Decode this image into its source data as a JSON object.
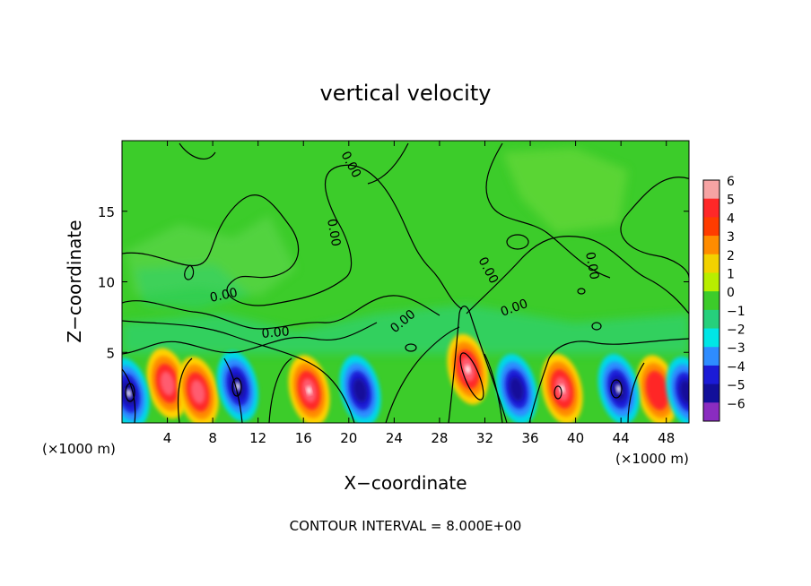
{
  "chart_data": {
    "type": "heatmap",
    "title": "vertical velocity",
    "xlabel": "X−coordinate",
    "ylabel": "Z−coordinate",
    "x_unit_left": "(×1000 m)",
    "x_unit_right": "(×1000 m)",
    "xlim": [
      0,
      50
    ],
    "ylim": [
      0,
      20
    ],
    "x_ticks": [
      4,
      8,
      12,
      16,
      20,
      24,
      28,
      32,
      36,
      40,
      44,
      48
    ],
    "x_tick_labels": [
      "4",
      "8",
      "12",
      "16",
      "20",
      "24",
      "28",
      "32",
      "36",
      "40",
      "44",
      "48"
    ],
    "y_ticks": [
      5,
      10,
      15
    ],
    "y_tick_labels": [
      "5",
      "10",
      "15"
    ],
    "contour_label": "0.00",
    "footer": "CONTOUR INTERVAL = 8.000E+00",
    "colorbar": {
      "levels": [
        6,
        5,
        4,
        3,
        2,
        1,
        0,
        -1,
        -2,
        -3,
        -4,
        -5,
        -6
      ],
      "labels": [
        "6",
        "5",
        "4",
        "3",
        "2",
        "1",
        "0",
        "−1",
        "−2",
        "−3",
        "−4",
        "−5",
        "−6"
      ],
      "colors": [
        "#f6a3a3",
        "#ff2828",
        "#ff3c00",
        "#ff8c00",
        "#f2d200",
        "#b8ee00",
        "#3ccc2a",
        "#26d07c",
        "#00e6e6",
        "#2e8cff",
        "#1b1bd6",
        "#120f9a",
        "#8a2cc0"
      ]
    },
    "updraft_cells": [
      {
        "x": 4.0,
        "z": 2.8,
        "peak": 4.5
      },
      {
        "x": 6.7,
        "z": 2.2,
        "peak": 4.5
      },
      {
        "x": 16.5,
        "z": 2.3,
        "peak": 5.5
      },
      {
        "x": 30.5,
        "z": 3.8,
        "peak": 6.0
      },
      {
        "x": 38.8,
        "z": 2.4,
        "peak": 6.0
      },
      {
        "x": 47.2,
        "z": 2.3,
        "peak": 3.5
      }
    ],
    "downdraft_cells": [
      {
        "x": 0.6,
        "z": 2.1,
        "peak": -6.0
      },
      {
        "x": 10.2,
        "z": 2.6,
        "peak": -6.0
      },
      {
        "x": 21.0,
        "z": 2.3,
        "peak": -4.5
      },
      {
        "x": 34.8,
        "z": 2.4,
        "peak": -4.5
      },
      {
        "x": 43.8,
        "z": 2.4,
        "peak": -6.0
      },
      {
        "x": 49.8,
        "z": 2.2,
        "peak": -5.0
      }
    ]
  }
}
